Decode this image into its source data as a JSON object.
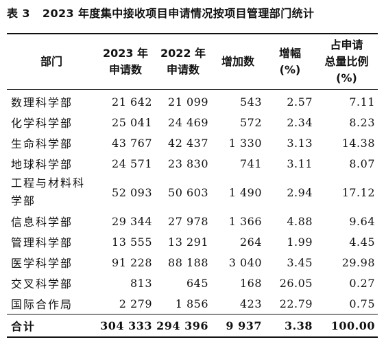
{
  "caption": {
    "number": "表 3",
    "title": "2023 年度集中接收项目申请情况按项目管理部门统计"
  },
  "columns": [
    {
      "line1": "部门",
      "line2": ""
    },
    {
      "line1": "2023 年",
      "line2": "申请数"
    },
    {
      "line1": "2022 年",
      "line2": "申请数"
    },
    {
      "line1": "增加数",
      "line2": ""
    },
    {
      "line1": "增幅",
      "line2": "(%)"
    },
    {
      "line1": "占申请",
      "line2": "总量比例",
      "line3": "(%)"
    }
  ],
  "rows": [
    {
      "dept": "数理科学部",
      "y2023": "21 642",
      "y2022": "21 099",
      "increase": "543",
      "growth": "2.57",
      "share": "7.11"
    },
    {
      "dept": "化学科学部",
      "y2023": "25 041",
      "y2022": "24 469",
      "increase": "572",
      "growth": "2.34",
      "share": "8.23"
    },
    {
      "dept": "生命科学部",
      "y2023": "43 767",
      "y2022": "42 437",
      "increase": "1 330",
      "growth": "3.13",
      "share": "14.38"
    },
    {
      "dept": "地球科学部",
      "y2023": "24 571",
      "y2022": "23 830",
      "increase": "741",
      "growth": "3.11",
      "share": "8.07"
    },
    {
      "dept": "工程与材料科学部",
      "y2023": "52 093",
      "y2022": "50 603",
      "increase": "1 490",
      "growth": "2.94",
      "share": "17.12"
    },
    {
      "dept": "信息科学部",
      "y2023": "29 344",
      "y2022": "27 978",
      "increase": "1 366",
      "growth": "4.88",
      "share": "9.64"
    },
    {
      "dept": "管理科学部",
      "y2023": "13 555",
      "y2022": "13 291",
      "increase": "264",
      "growth": "1.99",
      "share": "4.45"
    },
    {
      "dept": "医学科学部",
      "y2023": "91 228",
      "y2022": "88 188",
      "increase": "3 040",
      "growth": "3.45",
      "share": "29.98"
    },
    {
      "dept": "交叉科学部",
      "y2023": "813",
      "y2022": "645",
      "increase": "168",
      "growth": "26.05",
      "share": "0.27"
    },
    {
      "dept": "国际合作局",
      "y2023": "2 279",
      "y2022": "1 856",
      "increase": "423",
      "growth": "22.79",
      "share": "0.75"
    }
  ],
  "total": {
    "dept": "合计",
    "y2023": "304 333",
    "y2022": "294 396",
    "increase": "9 937",
    "growth": "3.38",
    "share": "100.00"
  }
}
